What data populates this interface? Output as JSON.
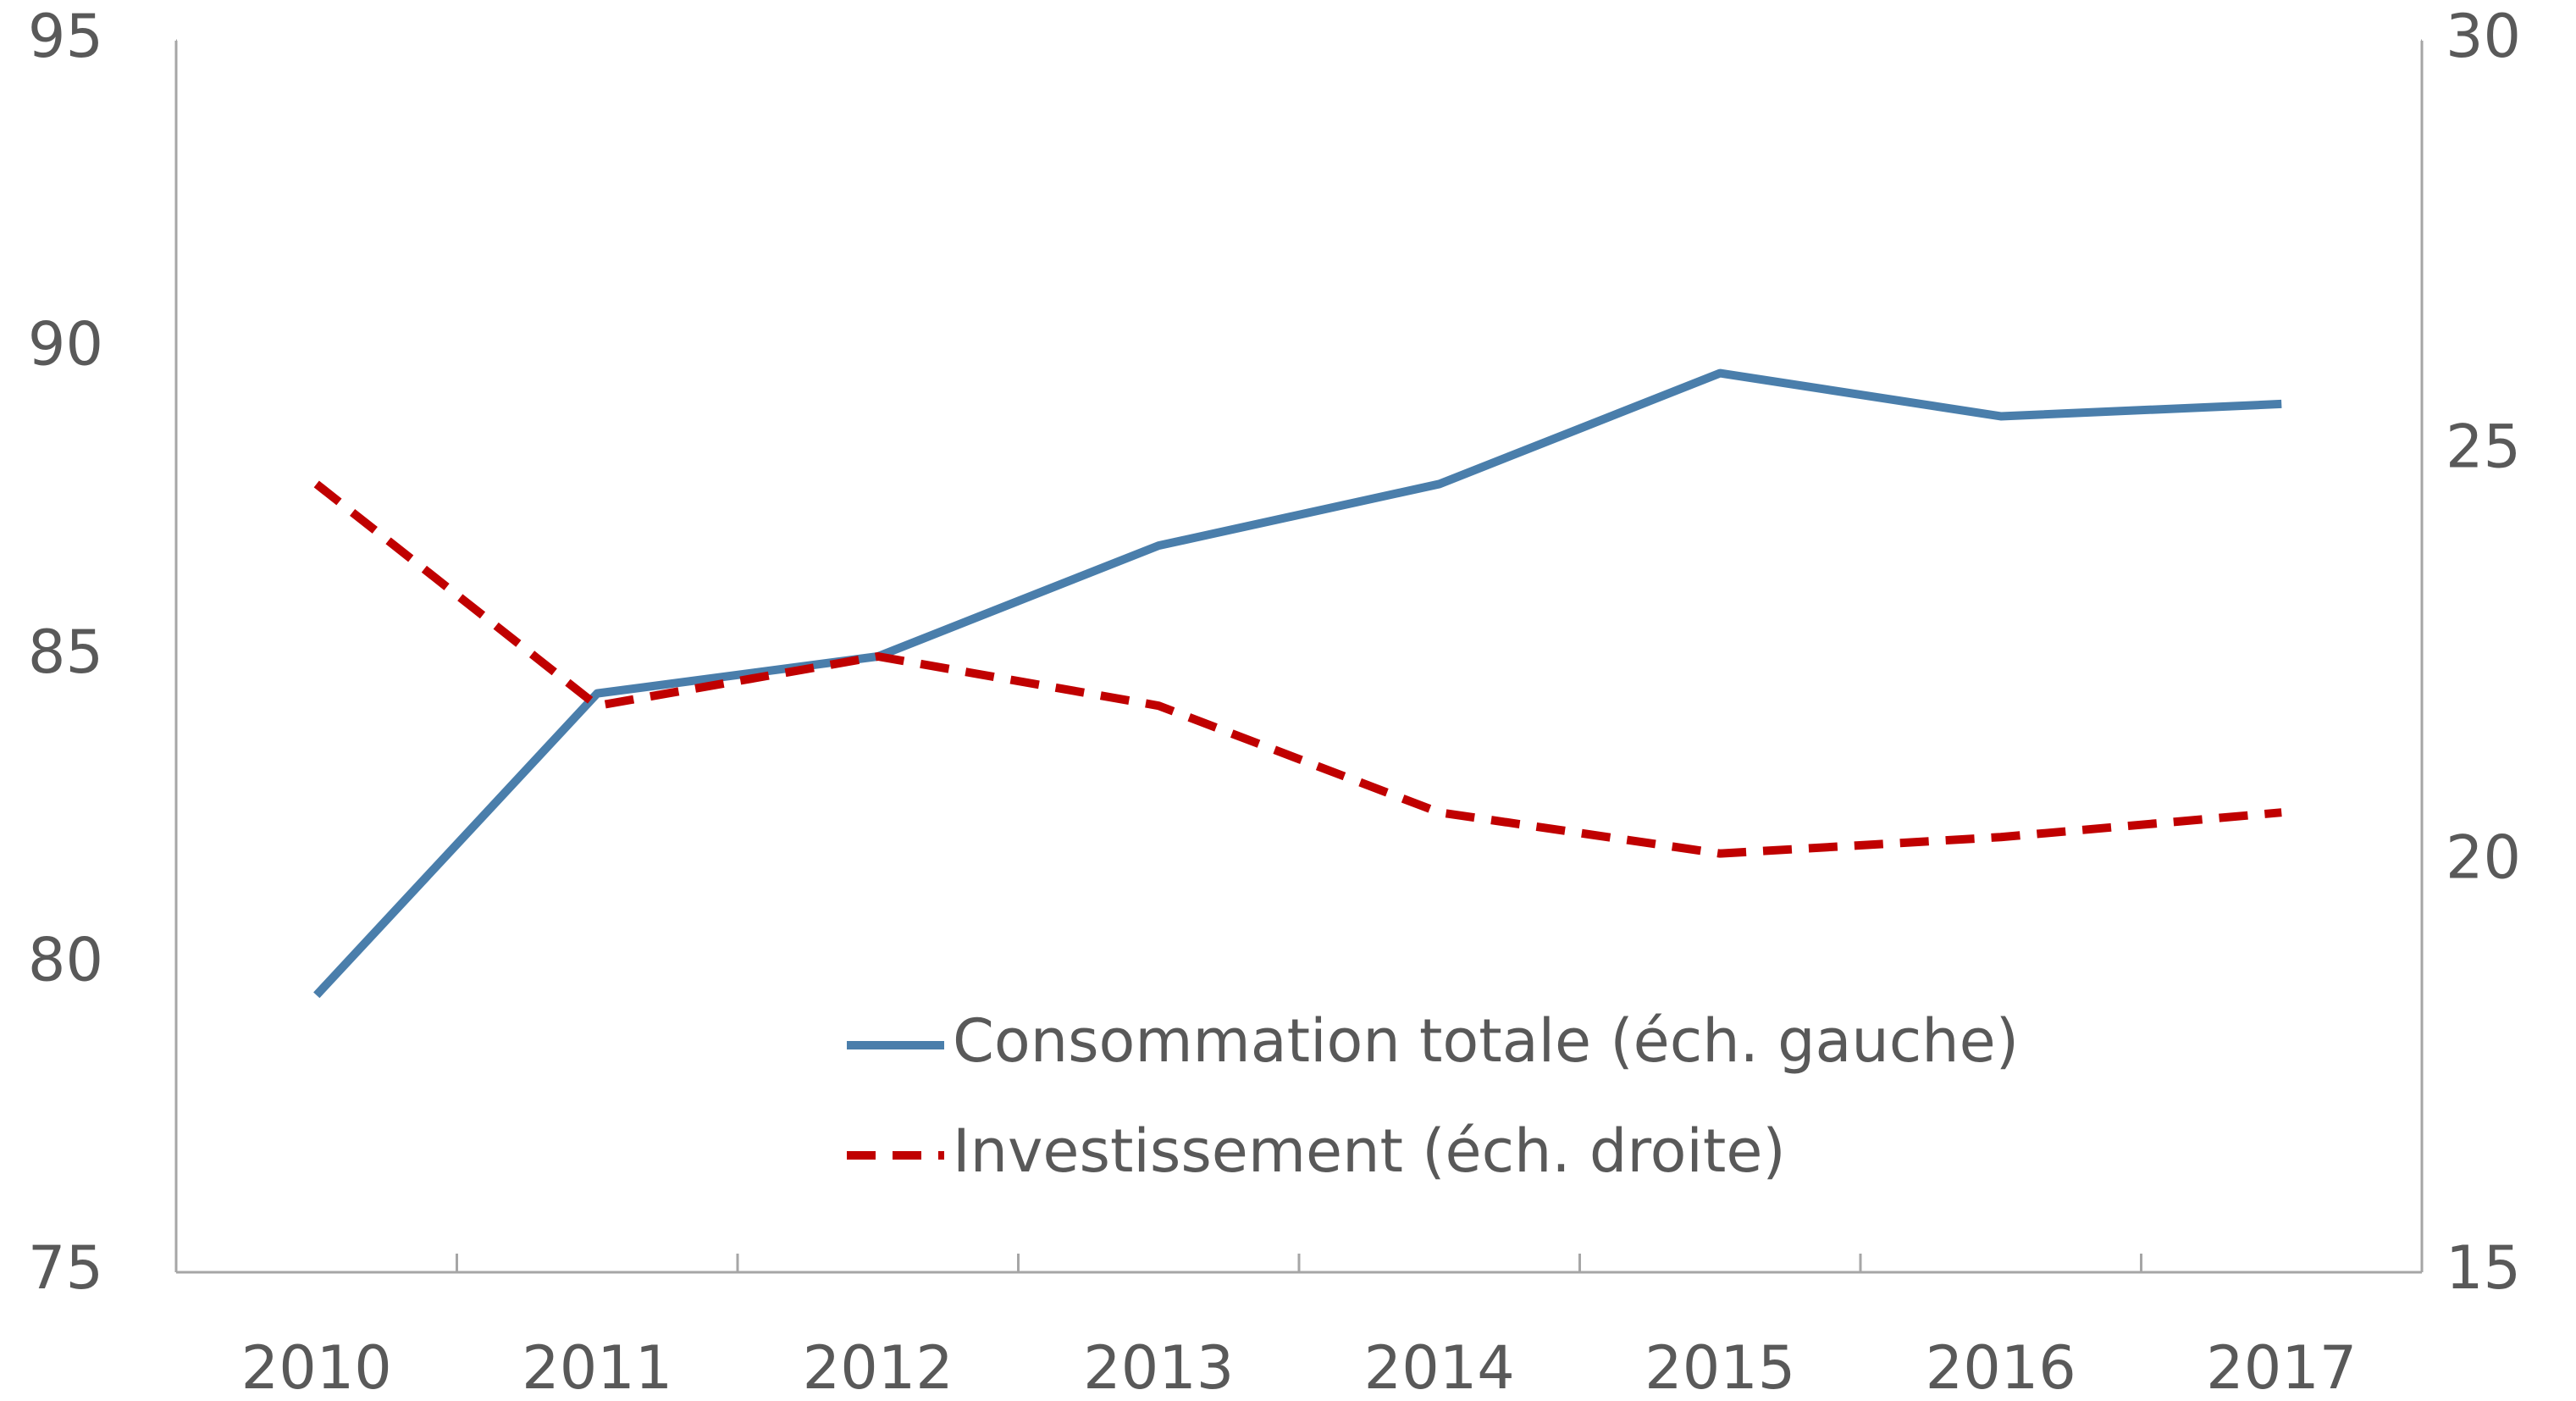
{
  "chart_data": {
    "type": "line",
    "categories": [
      "2010",
      "2011",
      "2012",
      "2013",
      "2014",
      "2015",
      "2016",
      "2017"
    ],
    "series": [
      {
        "name": "Consommation totale (éch. gauche)",
        "color": "#4a7eab",
        "style": "solid",
        "axis": "y",
        "values": [
          79.5,
          84.4,
          85.0,
          86.8,
          87.8,
          89.6,
          88.9,
          89.1
        ]
      },
      {
        "name": "Investissement (éch. droite)",
        "color": "#c00000",
        "style": "dashed",
        "axis": "y2",
        "values": [
          24.6,
          21.9,
          22.5,
          21.9,
          20.6,
          20.1,
          20.3,
          20.6
        ]
      }
    ],
    "ylim": [
      75,
      95
    ],
    "yticks": [
      75,
      80,
      85,
      90,
      95
    ],
    "y2lim": [
      15,
      30
    ],
    "y2ticks": [
      15,
      20,
      25,
      30
    ],
    "grid": false,
    "legend": "bottom-center"
  }
}
